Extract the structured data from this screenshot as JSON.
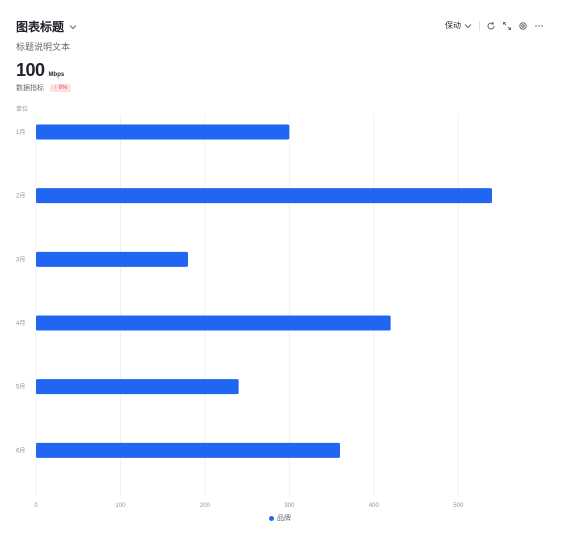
{
  "header": {
    "title": "图表标题",
    "subtitle": "标题说明文本",
    "toolbar": {
      "dropdown_label": "保动"
    }
  },
  "metric": {
    "value": "100",
    "unit": "Mbps",
    "label": "数据指标",
    "badge": "↑ 8%"
  },
  "icons": [
    "chevron-down-icon",
    "refresh-icon",
    "expand-icon",
    "settings-icon",
    "more-icon"
  ],
  "colors": {
    "bar": "#2166f3",
    "grid": "#ebedf0",
    "axis_text": "#8f959e",
    "badge_bg": "#fde2e2",
    "badge_text": "#e34d59"
  },
  "chart_data": {
    "type": "bar",
    "orientation": "horizontal",
    "unit_label": "单位",
    "categories": [
      "1月",
      "2月",
      "3月",
      "4月",
      "5月",
      "6月"
    ],
    "series": [
      {
        "name": "品牌",
        "values": [
          300,
          540,
          180,
          420,
          240,
          360
        ]
      }
    ],
    "xticks": [
      0,
      100,
      200,
      300,
      400,
      500
    ],
    "xlim": [
      0,
      540
    ],
    "grid": true,
    "legend_position": "bottom"
  }
}
